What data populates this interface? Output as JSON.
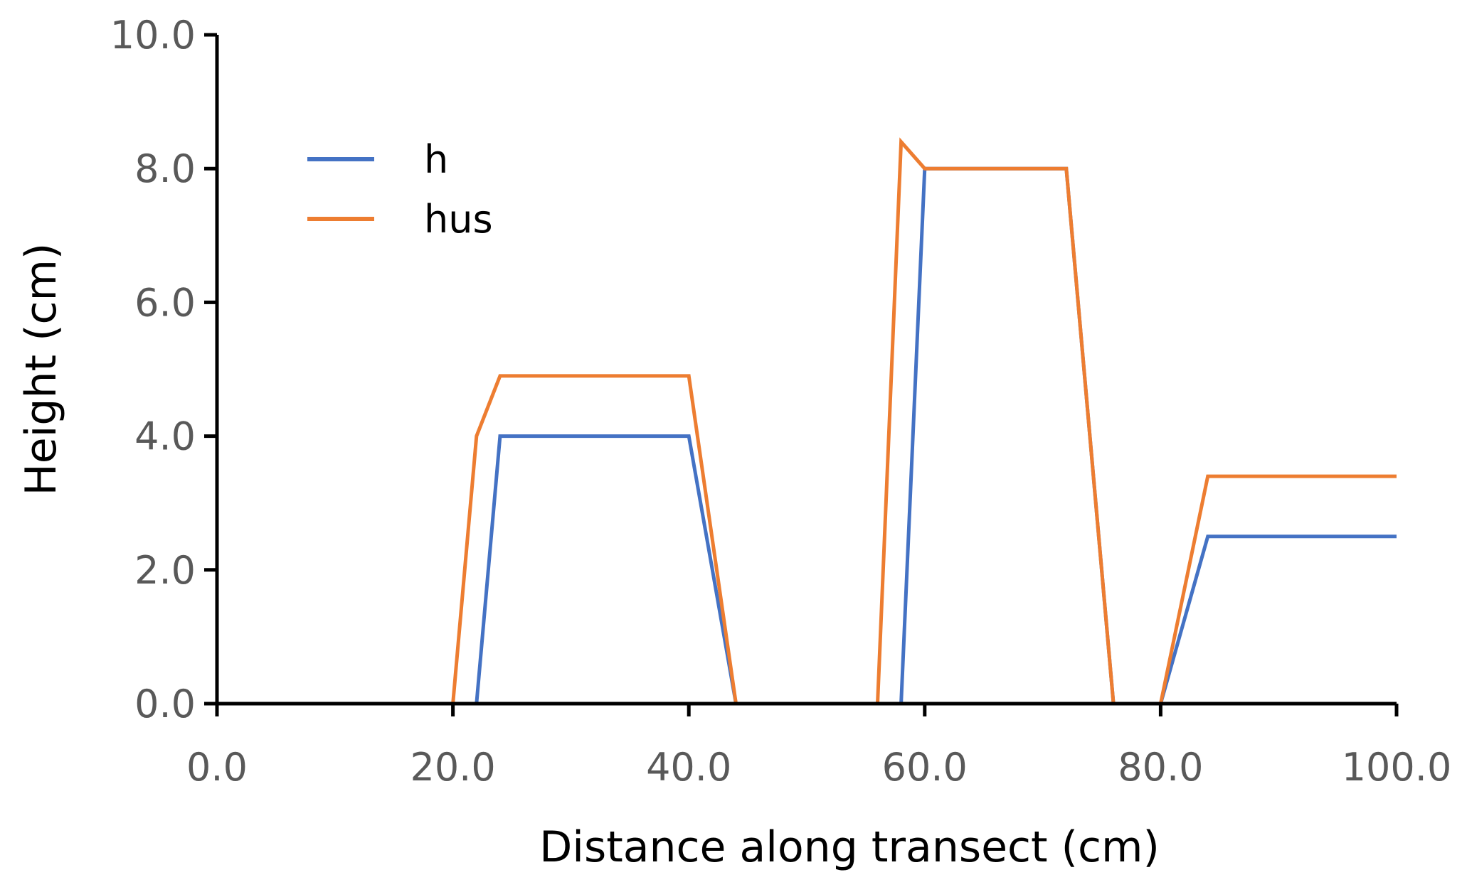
{
  "chart_data": {
    "type": "line",
    "title": "",
    "xlabel": "Distance along transect (cm)",
    "ylabel": "Height (cm)",
    "xlim": [
      0,
      100
    ],
    "ylim": [
      0,
      10
    ],
    "xticks": [
      "0.0",
      "20.0",
      "40.0",
      "60.0",
      "80.0",
      "100.0"
    ],
    "yticks": [
      "0.0",
      "2.0",
      "4.0",
      "6.0",
      "8.0",
      "10.0"
    ],
    "grid": false,
    "legend_position": "top-left",
    "series": [
      {
        "name": "h",
        "color": "#4472C4",
        "x": [
          0,
          20,
          22,
          24,
          40,
          44,
          56,
          58,
          60,
          72,
          76,
          80,
          84,
          100
        ],
        "y": [
          0,
          0,
          0,
          4.0,
          4.0,
          0,
          0,
          0,
          8.0,
          8.0,
          0,
          0,
          2.5,
          2.5
        ]
      },
      {
        "name": "hus",
        "color": "#ED7D31",
        "x": [
          0,
          20,
          22,
          24,
          40,
          44,
          56,
          58,
          60,
          72,
          76,
          80,
          84,
          100
        ],
        "y": [
          0,
          0,
          4.0,
          4.9,
          4.9,
          0,
          0,
          8.4,
          8.0,
          8.0,
          0,
          0,
          3.4,
          3.4
        ]
      }
    ]
  }
}
